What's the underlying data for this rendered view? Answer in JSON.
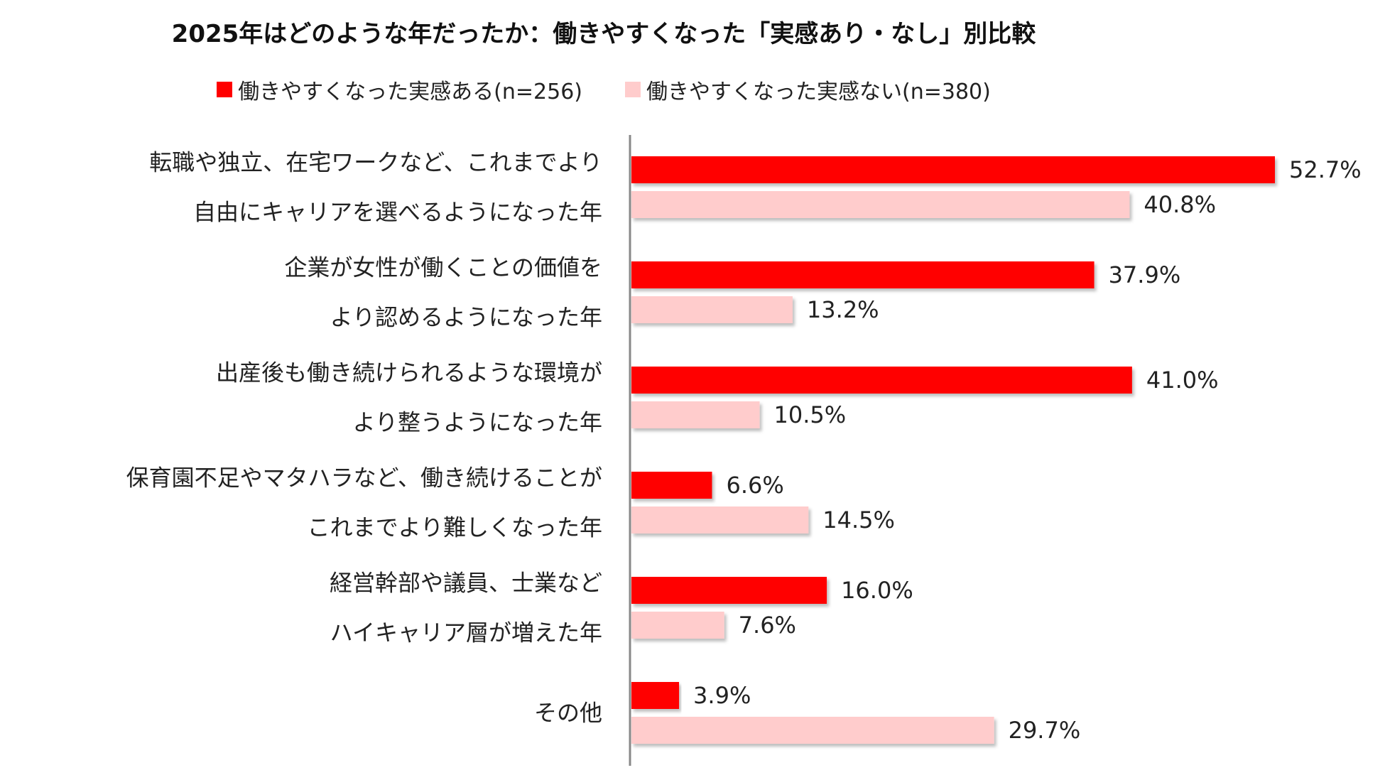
{
  "chart_data": {
    "type": "bar",
    "orientation": "horizontal",
    "title": "2025年はどのような年だったか：働きやすくなった「実感あり・なし」別比較",
    "xlim": [
      0,
      60
    ],
    "grid": false,
    "legend_position": "top",
    "value_suffix": "%",
    "categories": [
      [
        "転職や独立、在宅ワークなど、これまでより",
        "自由にキャリアを選べるようになった年"
      ],
      [
        "企業が女性が働くことの価値を",
        "より認めるようになった年"
      ],
      [
        "出産後も働き続けられるような環境が",
        "より整うようになった年"
      ],
      [
        "保育園不足やマタハラなど、働き続けることが",
        "これまでより難しくなった年"
      ],
      [
        "経営幹部や議員、士業など",
        "ハイキャリア層が増えた年"
      ],
      [
        "その他"
      ]
    ],
    "series": [
      {
        "name": "働きやすくなった実感ある(n=256)",
        "color": "#ff0000",
        "values": [
          52.7,
          37.9,
          41.0,
          6.6,
          16.0,
          3.9
        ]
      },
      {
        "name": "働きやすくなった実感ない(n=380)",
        "color": "#ffcccc",
        "values": [
          40.8,
          13.2,
          10.5,
          14.5,
          7.6,
          29.7
        ]
      }
    ]
  }
}
